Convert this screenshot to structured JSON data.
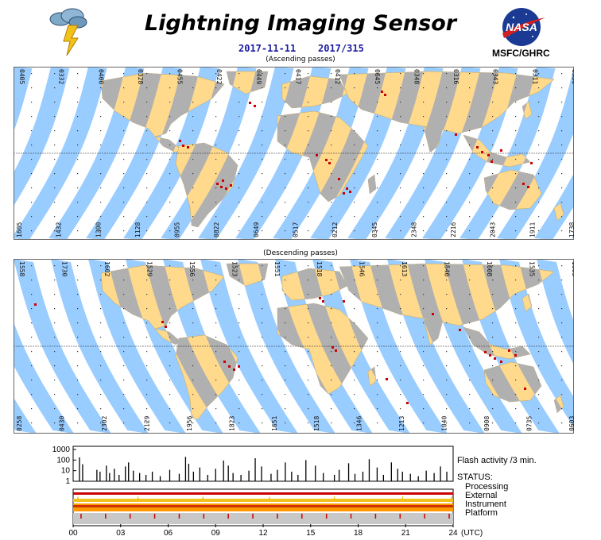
{
  "header": {
    "title": "Lightning Imaging Sensor",
    "date": "2017-11-11",
    "doy": "2017/315",
    "org": "MSFC/GHRC",
    "nasa_logo_text": "NASA"
  },
  "colors": {
    "swath": "#99ccff",
    "land_day": "#ffd98c",
    "land_night": "#b0b0b0",
    "flash": "#cc0000",
    "instrument_band": "#ff9900",
    "processing_band": "#cc0000"
  },
  "ascending": {
    "caption": "(Ascending passes)",
    "top_times": [
      "0405",
      "0332",
      "0400",
      "0328",
      "0455",
      "0422",
      "0449",
      "0417",
      "0412",
      "0645",
      "0348",
      "0316",
      "0343",
      "0311",
      "0338"
    ],
    "bottom_times": [
      "1605",
      "1432",
      "1300",
      "1128",
      "0955",
      "0822",
      "0649",
      "0517",
      "0212",
      "0345",
      "2348",
      "2216",
      "2043",
      "1911",
      "1738"
    ]
  },
  "descending": {
    "caption": "(Descending passes)",
    "top_times": [
      "1558",
      "1730",
      "1602",
      "1529",
      "1556",
      "1523",
      "1551",
      "1518",
      "1546",
      "1613",
      "1540",
      "1608",
      "1535",
      "1603"
    ],
    "bottom_times": [
      "0258",
      "0430",
      "2302",
      "2129",
      "1956",
      "1823",
      "1651",
      "1518",
      "1346",
      "1213",
      "1040",
      "0908",
      "0735",
      "0603"
    ]
  },
  "chart_data": {
    "type": "bar",
    "title": "Flash activity /3 min.",
    "xlabel": "(UTC)",
    "yscale": "log",
    "ylim": [
      1,
      1000
    ],
    "yticks": [
      "1000",
      "100",
      "10",
      "1"
    ],
    "xticks": [
      "00",
      "03",
      "06",
      "09",
      "12",
      "15",
      "18",
      "21",
      "24"
    ],
    "xrange": [
      0,
      24
    ],
    "x_hours": [
      0.4,
      0.6,
      1.5,
      1.7,
      2.1,
      2.3,
      2.6,
      2.9,
      3.3,
      3.5,
      3.8,
      4.2,
      4.6,
      5.0,
      5.5,
      6.1,
      6.7,
      7.1,
      7.3,
      7.6,
      8.0,
      8.5,
      9.0,
      9.5,
      9.8,
      10.1,
      10.6,
      11.1,
      11.5,
      11.9,
      12.5,
      12.9,
      13.4,
      13.8,
      14.2,
      14.7,
      15.3,
      15.8,
      16.5,
      16.8,
      17.4,
      17.8,
      18.3,
      18.7,
      19.2,
      19.6,
      20.1,
      20.5,
      20.8,
      21.3,
      21.8,
      22.3,
      22.8,
      23.2,
      23.6
    ],
    "flash_counts": [
      180,
      40,
      12,
      8,
      30,
      6,
      15,
      4,
      25,
      60,
      10,
      6,
      4,
      8,
      3,
      12,
      5,
      200,
      45,
      8,
      20,
      4,
      15,
      90,
      30,
      6,
      4,
      10,
      150,
      25,
      5,
      12,
      60,
      8,
      4,
      100,
      30,
      6,
      4,
      12,
      50,
      5,
      8,
      120,
      20,
      4,
      60,
      15,
      8,
      5,
      3,
      10,
      6,
      25,
      8
    ],
    "status_title": "STATUS:",
    "status_rows": [
      "Processing",
      "External",
      "Instrument",
      "Platform"
    ]
  }
}
